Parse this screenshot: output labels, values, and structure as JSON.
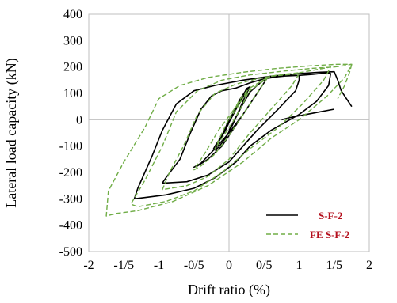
{
  "chart_data": {
    "type": "line",
    "xlabel": "Drift ratio (%)",
    "ylabel": "Lateral load capacity (kN)",
    "xlim": [
      -2,
      2
    ],
    "ylim": [
      -500,
      400
    ],
    "x_tick_values": [
      -2,
      -1.5,
      -1,
      -0.5,
      0,
      0.5,
      1,
      1.5,
      2
    ],
    "x_tick_labels": [
      "-2",
      "-1/5",
      "-1",
      "-0/5",
      "0",
      "0/5",
      "1",
      "1/5",
      "2"
    ],
    "y_tick_values": [
      400,
      300,
      200,
      100,
      0,
      -100,
      -200,
      -300,
      -400,
      -500
    ],
    "y_tick_labels": [
      "400",
      "300",
      "200",
      "100",
      "0",
      "-100",
      "-200",
      "-300",
      "-400",
      "-500"
    ],
    "grid": false,
    "legend_position": "bottom-right",
    "series": [
      {
        "name": "S-F-2",
        "color": "#000000",
        "dash": "solid",
        "loops": [
          [
            [
              0,
              0
            ],
            [
              0.1,
              40
            ],
            [
              0.2,
              90
            ],
            [
              0.25,
              118
            ],
            [
              0.3,
              125
            ],
            [
              0.25,
              100
            ],
            [
              0.15,
              40
            ],
            [
              0.05,
              -20
            ],
            [
              -0.05,
              -70
            ],
            [
              -0.15,
              -105
            ],
            [
              -0.2,
              -115
            ],
            [
              -0.15,
              -85
            ],
            [
              -0.05,
              -40
            ],
            [
              0.05,
              20
            ],
            [
              0.15,
              75
            ],
            [
              0.25,
              115
            ],
            [
              0.3,
              125
            ],
            [
              0.22,
              95
            ],
            [
              0.1,
              40
            ],
            [
              0,
              -10
            ],
            [
              -0.1,
              -60
            ],
            [
              -0.2,
              -100
            ],
            [
              -0.22,
              -110
            ],
            [
              -0.1,
              -60
            ],
            [
              0,
              0
            ]
          ],
          [
            [
              0,
              -40
            ],
            [
              0.1,
              10
            ],
            [
              0.2,
              60
            ],
            [
              0.3,
              105
            ],
            [
              0.4,
              130
            ],
            [
              0.5,
              150
            ],
            [
              0.55,
              160
            ],
            [
              0.45,
              120
            ],
            [
              0.3,
              60
            ],
            [
              0.1,
              -20
            ],
            [
              -0.1,
              -100
            ],
            [
              -0.3,
              -150
            ],
            [
              -0.45,
              -175
            ],
            [
              -0.5,
              -180
            ],
            [
              -0.4,
              -165
            ],
            [
              -0.2,
              -110
            ],
            [
              0,
              -50
            ],
            [
              0.2,
              20
            ],
            [
              0.35,
              80
            ],
            [
              0.45,
              120
            ],
            [
              0.55,
              160
            ]
          ],
          [
            [
              0.55,
              160
            ],
            [
              0.6,
              163
            ],
            [
              0.75,
              165
            ],
            [
              1.0,
              168
            ],
            [
              1.0,
              150
            ],
            [
              0.95,
              110
            ],
            [
              0.7,
              40
            ],
            [
              0.4,
              -40
            ],
            [
              0.2,
              -100
            ],
            [
              0,
              -160
            ],
            [
              -0.3,
              -210
            ],
            [
              -0.6,
              -235
            ],
            [
              -0.9,
              -240
            ],
            [
              -0.95,
              -240
            ],
            [
              -0.9,
              -220
            ],
            [
              -0.7,
              -150
            ],
            [
              -0.55,
              -50
            ],
            [
              -0.4,
              40
            ],
            [
              -0.25,
              90
            ],
            [
              -0.1,
              110
            ],
            [
              0.1,
              120
            ],
            [
              0.3,
              140
            ],
            [
              0.5,
              155
            ],
            [
              0.7,
              163
            ],
            [
              0.9,
              168
            ],
            [
              1.0,
              168
            ]
          ],
          [
            [
              1.0,
              168
            ],
            [
              1.2,
              172
            ],
            [
              1.4,
              178
            ],
            [
              1.45,
              175
            ],
            [
              1.42,
              130
            ],
            [
              1.25,
              70
            ],
            [
              1.0,
              20
            ],
            [
              0.6,
              -40
            ],
            [
              0.3,
              -100
            ],
            [
              0.1,
              -160
            ],
            [
              -0.2,
              -220
            ],
            [
              -0.5,
              -260
            ],
            [
              -0.9,
              -285
            ],
            [
              -1.2,
              -295
            ],
            [
              -1.35,
              -300
            ],
            [
              -1.3,
              -260
            ],
            [
              -1.1,
              -140
            ],
            [
              -0.95,
              -40
            ],
            [
              -0.75,
              60
            ],
            [
              -0.5,
              110
            ],
            [
              -0.2,
              130
            ],
            [
              0.2,
              150
            ],
            [
              0.6,
              165
            ],
            [
              1.0,
              175
            ],
            [
              1.3,
              180
            ],
            [
              1.5,
              182
            ],
            [
              1.55,
              150
            ],
            [
              1.6,
              110
            ],
            [
              1.7,
              70
            ],
            [
              1.75,
              50
            ]
          ],
          [
            [
              0.75,
              0
            ],
            [
              0.9,
              10
            ],
            [
              1.1,
              20
            ],
            [
              1.3,
              30
            ],
            [
              1.5,
              40
            ]
          ]
        ]
      },
      {
        "name": "FE S-F-2",
        "color": "#70ad47",
        "dash": "dashed",
        "loops": [
          [
            [
              0,
              0
            ],
            [
              0.15,
              60
            ],
            [
              0.25,
              105
            ],
            [
              0.3,
              120
            ],
            [
              0.2,
              60
            ],
            [
              0.05,
              -10
            ],
            [
              -0.1,
              -70
            ],
            [
              -0.2,
              -110
            ],
            [
              -0.1,
              -50
            ],
            [
              0.05,
              30
            ],
            [
              0.2,
              95
            ],
            [
              0.3,
              120
            ]
          ],
          [
            [
              0.3,
              120
            ],
            [
              0.45,
              145
            ],
            [
              0.55,
              160
            ],
            [
              0.4,
              100
            ],
            [
              0.2,
              20
            ],
            [
              0,
              -60
            ],
            [
              -0.2,
              -130
            ],
            [
              -0.4,
              -175
            ],
            [
              -0.5,
              -190
            ],
            [
              -0.35,
              -130
            ],
            [
              -0.15,
              -40
            ],
            [
              0.1,
              50
            ],
            [
              0.3,
              110
            ],
            [
              0.5,
              150
            ],
            [
              0.6,
              165
            ]
          ],
          [
            [
              0.6,
              165
            ],
            [
              0.8,
              170
            ],
            [
              1.0,
              175
            ],
            [
              0.9,
              130
            ],
            [
              0.6,
              40
            ],
            [
              0.3,
              -50
            ],
            [
              0,
              -150
            ],
            [
              -0.3,
              -215
            ],
            [
              -0.6,
              -250
            ],
            [
              -0.95,
              -265
            ],
            [
              -0.85,
              -200
            ],
            [
              -0.65,
              -100
            ],
            [
              -0.45,
              20
            ],
            [
              -0.2,
              100
            ],
            [
              0.1,
              135
            ],
            [
              0.4,
              155
            ],
            [
              0.7,
              170
            ],
            [
              1.0,
              178
            ]
          ],
          [
            [
              1.0,
              178
            ],
            [
              1.25,
              190
            ],
            [
              1.45,
              200
            ],
            [
              1.35,
              150
            ],
            [
              1.05,
              60
            ],
            [
              0.7,
              -30
            ],
            [
              0.3,
              -110
            ],
            [
              -0.1,
              -200
            ],
            [
              -0.5,
              -270
            ],
            [
              -0.9,
              -310
            ],
            [
              -1.3,
              -330
            ],
            [
              -1.4,
              -320
            ],
            [
              -1.2,
              -230
            ],
            [
              -0.95,
              -100
            ],
            [
              -0.75,
              30
            ],
            [
              -0.45,
              110
            ],
            [
              -0.1,
              150
            ],
            [
              0.3,
              170
            ],
            [
              0.8,
              185
            ],
            [
              1.2,
              195
            ],
            [
              1.5,
              200
            ]
          ],
          [
            [
              1.5,
              200
            ],
            [
              1.65,
              205
            ],
            [
              1.75,
              210
            ],
            [
              1.65,
              160
            ],
            [
              1.4,
              90
            ],
            [
              1.0,
              0
            ],
            [
              0.6,
              -70
            ],
            [
              0.2,
              -160
            ],
            [
              -0.3,
              -250
            ],
            [
              -0.8,
              -310
            ],
            [
              -1.3,
              -345
            ],
            [
              -1.6,
              -355
            ],
            [
              -1.75,
              -365
            ],
            [
              -1.72,
              -270
            ],
            [
              -1.5,
              -160
            ],
            [
              -1.2,
              -30
            ],
            [
              -1.0,
              80
            ],
            [
              -0.7,
              130
            ],
            [
              -0.3,
              160
            ],
            [
              0.2,
              180
            ],
            [
              0.7,
              195
            ],
            [
              1.2,
              205
            ],
            [
              1.55,
              210
            ],
            [
              1.75,
              210
            ]
          ],
          [
            [
              1.75,
              210
            ],
            [
              1.72,
              180
            ],
            [
              1.65,
              130
            ],
            [
              1.55,
              80
            ]
          ]
        ]
      }
    ]
  }
}
